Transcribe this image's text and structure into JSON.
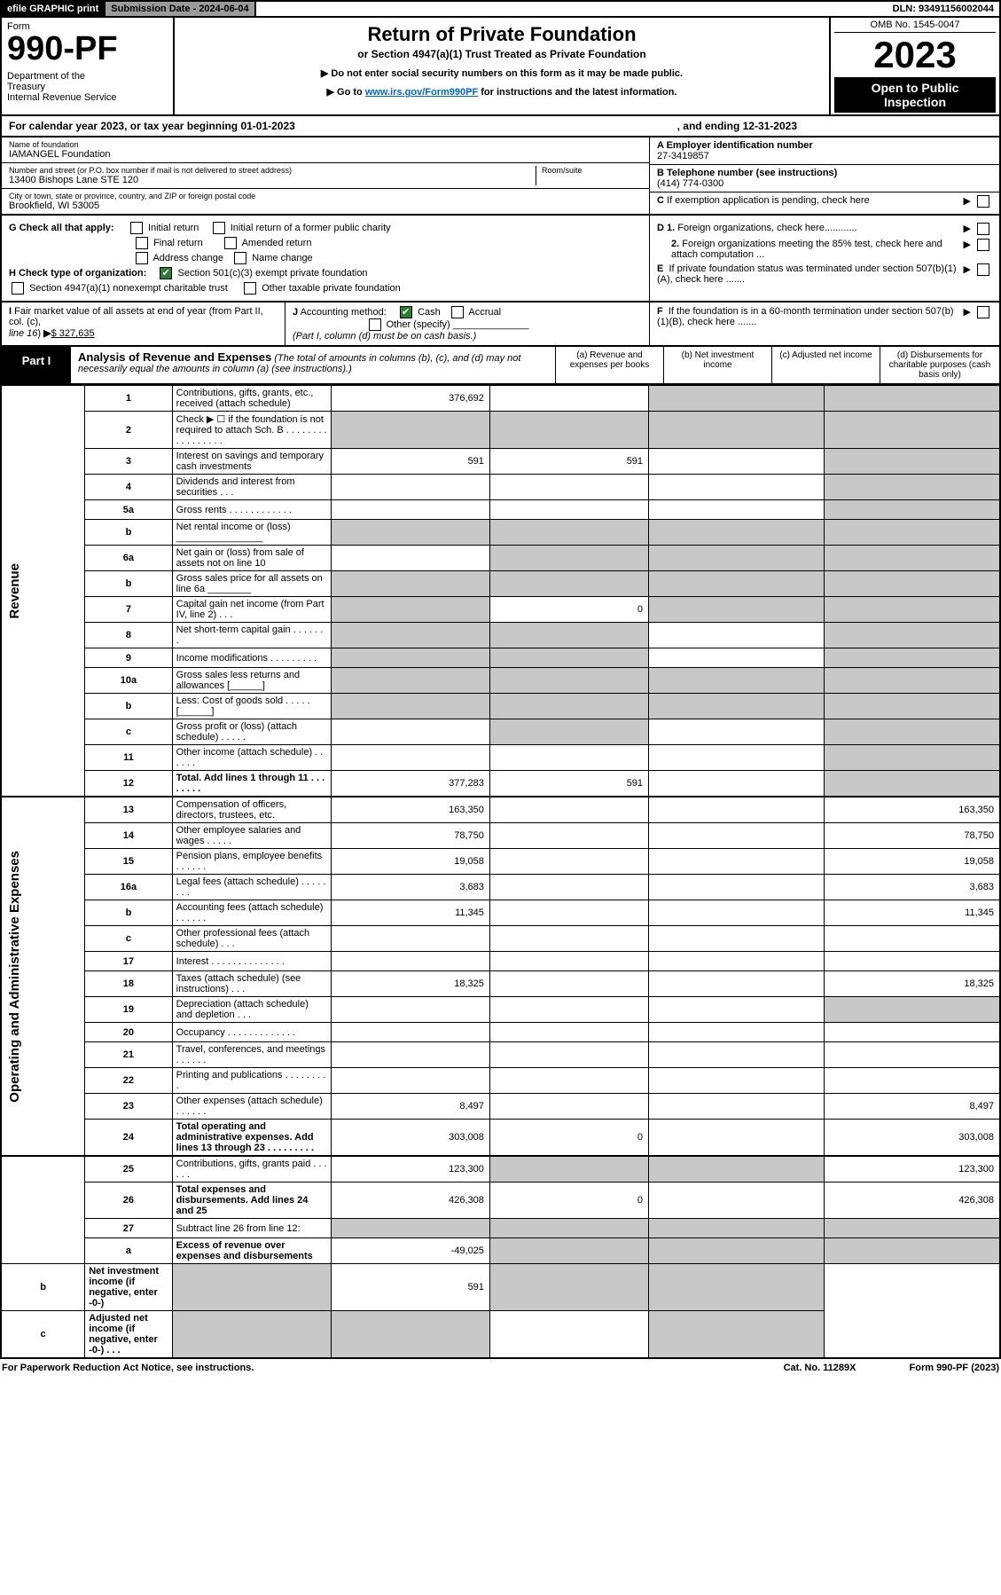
{
  "efile": {
    "print": "efile GRAPHIC print",
    "submission": "Submission Date - 2024-06-04",
    "dln": "DLN: 93491156002044"
  },
  "header": {
    "form_word": "Form",
    "form_no": "990-PF",
    "dept": "Department of the Treasury\nInternal Revenue Service",
    "title": "Return of Private Foundation",
    "subtitle": "or Section 4947(a)(1) Trust Treated as Private Foundation",
    "note1": "▶ Do not enter social security numbers on this form as it may be made public.",
    "note2_pre": "▶ Go to ",
    "note2_link": "www.irs.gov/Form990PF",
    "note2_post": " for instructions and the latest information.",
    "omb": "OMB No. 1545-0047",
    "year": "2023",
    "open": "Open to Public Inspection"
  },
  "calyear": {
    "text": "For calendar year 2023, or tax year beginning 01-01-2023",
    "ending": ", and ending 12-31-2023"
  },
  "ident": {
    "name_label": "Name of foundation",
    "name": "IAMANGEL Foundation",
    "addr_label": "Number and street (or P.O. box number if mail is not delivered to street address)",
    "addr": "13400 Bishops Lane STE 120",
    "room_label": "Room/suite",
    "city_label": "City or town, state or province, country, and ZIP or foreign postal code",
    "city": "Brookfield, WI  53005",
    "a_label": "A Employer identification number",
    "a_val": "27-3419857",
    "b_label": "B Telephone number (see instructions)",
    "b_val": "(414) 774-0300",
    "c_label": "C If exemption application is pending, check here"
  },
  "checks": {
    "g": "G Check all that apply:",
    "g_opts": [
      "Initial return",
      "Initial return of a former public charity",
      "Final return",
      "Amended return",
      "Address change",
      "Name change"
    ],
    "h": "H Check type of organization:",
    "h1": "Section 501(c)(3) exempt private foundation",
    "h2": "Section 4947(a)(1) nonexempt charitable trust",
    "h3": "Other taxable private foundation",
    "d1": "D 1. Foreign organizations, check here............",
    "d2": "2. Foreign organizations meeting the 85% test, check here and attach computation ...",
    "e": "E  If private foundation status was terminated under section 507(b)(1)(A), check here .......",
    "i": "I Fair market value of all assets at end of year (from Part II, col. (c), line 16) ▶",
    "i_val": "$  327,635",
    "j": "J Accounting method:",
    "j1": "Cash",
    "j2": "Accrual",
    "j3": "Other (specify)",
    "j_note": "(Part I, column (d) must be on cash basis.)",
    "f": "F  If the foundation is in a 60-month termination under section 507(b)(1)(B), check here ......."
  },
  "part1": {
    "label": "Part I",
    "title": "Analysis of Revenue and Expenses",
    "note": " (The total of amounts in columns (b), (c), and (d) may not necessarily equal the amounts in column (a) (see instructions).)",
    "cols": {
      "a": "(a)   Revenue and expenses per books",
      "b": "(b)   Net investment income",
      "c": "(c)   Adjusted net income",
      "d": "(d)  Disbursements for charitable purposes (cash basis only)"
    }
  },
  "sections": {
    "revenue": "Revenue",
    "opex": "Operating and Administrative Expenses"
  },
  "rows": [
    {
      "n": "1",
      "d": "Contributions, gifts, grants, etc., received (attach schedule)",
      "a": "376,692",
      "b": "",
      "c": "g",
      "dd": "g"
    },
    {
      "n": "2",
      "d": "Check ▶ ☐ if the foundation is not required to attach Sch. B  .  .  .  .  .  .  .  .  .  .  .  .  .  .  .  .  .",
      "a": "g",
      "b": "g",
      "c": "g",
      "dd": "g"
    },
    {
      "n": "3",
      "d": "Interest on savings and temporary cash investments",
      "a": "591",
      "b": "591",
      "c": "",
      "dd": "g"
    },
    {
      "n": "4",
      "d": "Dividends and interest from securities   .   .   .",
      "a": "",
      "b": "",
      "c": "",
      "dd": "g"
    },
    {
      "n": "5a",
      "d": "Gross rents   .   .   .   .   .   .   .   .   .   .   .   .",
      "a": "",
      "b": "",
      "c": "",
      "dd": "g"
    },
    {
      "n": "b",
      "d": "Net rental income or (loss)  ________________",
      "a": "g",
      "b": "g",
      "c": "g",
      "dd": "g"
    },
    {
      "n": "6a",
      "d": "Net gain or (loss) from sale of assets not on line 10",
      "a": "",
      "b": "g",
      "c": "g",
      "dd": "g"
    },
    {
      "n": "b",
      "d": "Gross sales price for all assets on line 6a ________",
      "a": "g",
      "b": "g",
      "c": "g",
      "dd": "g"
    },
    {
      "n": "7",
      "d": "Capital gain net income (from Part IV, line 2)   .   .   .",
      "a": "g",
      "b": "0",
      "c": "g",
      "dd": "g"
    },
    {
      "n": "8",
      "d": "Net short-term capital gain   .   .   .   .   .   .   .",
      "a": "g",
      "b": "g",
      "c": "",
      "dd": "g"
    },
    {
      "n": "9",
      "d": "Income modifications   .   .   .   .   .   .   .   .   .",
      "a": "g",
      "b": "g",
      "c": "",
      "dd": "g"
    },
    {
      "n": "10a",
      "d": "Gross sales less returns and allowances  [______]",
      "a": "g",
      "b": "g",
      "c": "g",
      "dd": "g"
    },
    {
      "n": "b",
      "d": "Less: Cost of goods sold   .   .   .   .   .  [______]",
      "a": "g",
      "b": "g",
      "c": "g",
      "dd": "g"
    },
    {
      "n": "c",
      "d": "Gross profit or (loss) (attach schedule)   .   .   .   .   .",
      "a": "",
      "b": "g",
      "c": "",
      "dd": "g"
    },
    {
      "n": "11",
      "d": "Other income (attach schedule)   .   .   .   .   .   .",
      "a": "",
      "b": "",
      "c": "",
      "dd": "g"
    },
    {
      "n": "12",
      "d": "Total. Add lines 1 through 11   .   .   .   .   .   .   .   .",
      "a": "377,283",
      "b": "591",
      "c": "",
      "dd": "g",
      "bold": true
    },
    {
      "n": "13",
      "d": "Compensation of officers, directors, trustees, etc.",
      "a": "163,350",
      "b": "",
      "c": "",
      "dd": "163,350"
    },
    {
      "n": "14",
      "d": "Other employee salaries and wages   .   .   .   .   .",
      "a": "78,750",
      "b": "",
      "c": "",
      "dd": "78,750"
    },
    {
      "n": "15",
      "d": "Pension plans, employee benefits   .   .   .   .   .   .",
      "a": "19,058",
      "b": "",
      "c": "",
      "dd": "19,058"
    },
    {
      "n": "16a",
      "d": "Legal fees (attach schedule)   .   .   .   .   .   .   .   .",
      "a": "3,683",
      "b": "",
      "c": "",
      "dd": "3,683"
    },
    {
      "n": "b",
      "d": "Accounting fees (attach schedule)   .   .   .   .   .   .",
      "a": "11,345",
      "b": "",
      "c": "",
      "dd": "11,345"
    },
    {
      "n": "c",
      "d": "Other professional fees (attach schedule)   .   .   .",
      "a": "",
      "b": "",
      "c": "",
      "dd": ""
    },
    {
      "n": "17",
      "d": "Interest   .   .   .   .   .   .   .   .   .   .   .   .   .   .",
      "a": "",
      "b": "",
      "c": "",
      "dd": ""
    },
    {
      "n": "18",
      "d": "Taxes (attach schedule) (see instructions)   .   .   .",
      "a": "18,325",
      "b": "",
      "c": "",
      "dd": "18,325"
    },
    {
      "n": "19",
      "d": "Depreciation (attach schedule) and depletion   .   .   .",
      "a": "",
      "b": "",
      "c": "",
      "dd": "g"
    },
    {
      "n": "20",
      "d": "Occupancy   .   .   .   .   .   .   .   .   .   .   .   .   .",
      "a": "",
      "b": "",
      "c": "",
      "dd": ""
    },
    {
      "n": "21",
      "d": "Travel, conferences, and meetings   .   .   .   .   .   .",
      "a": "",
      "b": "",
      "c": "",
      "dd": ""
    },
    {
      "n": "22",
      "d": "Printing and publications   .   .   .   .   .   .   .   .   .",
      "a": "",
      "b": "",
      "c": "",
      "dd": ""
    },
    {
      "n": "23",
      "d": "Other expenses (attach schedule)   .   .   .   .   .   .",
      "a": "8,497",
      "b": "",
      "c": "",
      "dd": "8,497"
    },
    {
      "n": "24",
      "d": "Total operating and administrative expenses. Add lines 13 through 23   .   .   .   .   .   .   .   .   .",
      "a": "303,008",
      "b": "0",
      "c": "",
      "dd": "303,008",
      "bold": true,
      "tall": true
    },
    {
      "n": "25",
      "d": "Contributions, gifts, grants paid   .   .   .   .   .   .",
      "a": "123,300",
      "b": "g",
      "c": "g",
      "dd": "123,300"
    },
    {
      "n": "26",
      "d": "Total expenses and disbursements. Add lines 24 and 25",
      "a": "426,308",
      "b": "0",
      "c": "",
      "dd": "426,308",
      "bold": true,
      "tall": true
    },
    {
      "n": "27",
      "d": "Subtract line 26 from line 12:",
      "a": "g",
      "b": "g",
      "c": "g",
      "dd": "g"
    },
    {
      "n": "a",
      "d": "Excess of revenue over expenses and disbursements",
      "a": "-49,025",
      "b": "g",
      "c": "g",
      "dd": "g",
      "bold": true
    },
    {
      "n": "b",
      "d": "Net investment income (if negative, enter -0-)",
      "a": "g",
      "b": "591",
      "c": "g",
      "dd": "g",
      "bold": true
    },
    {
      "n": "c",
      "d": "Adjusted net income (if negative, enter -0-)   .   .   .",
      "a": "g",
      "b": "g",
      "c": "",
      "dd": "g",
      "bold": true
    }
  ],
  "footer": {
    "left": "For Paperwork Reduction Act Notice, see instructions.",
    "center": "Cat. No. 11289X",
    "right": "Form 990-PF (2023)"
  }
}
